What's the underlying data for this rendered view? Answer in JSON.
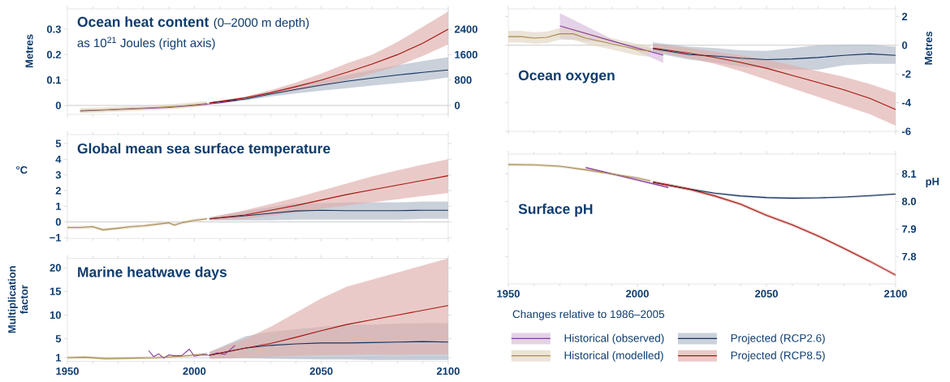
{
  "chart_data": [
    {
      "type": "line",
      "title": "Ocean heat content",
      "subtitle": "(0–2000 m depth)",
      "annotations": [
        "as 10$^{21}$ Joules (right axis)"
      ],
      "ylabel": "Metres",
      "xlim": [
        1950,
        2100
      ],
      "xticks": [
        1950,
        2000,
        2050,
        2100
      ],
      "ylim": [
        -0.035,
        0.38
      ],
      "yticks": [
        0,
        0.1,
        0.2,
        0.3
      ],
      "y2lim": [
        -280,
        3040
      ],
      "y2ticks": [
        0,
        800,
        1600,
        2400
      ],
      "tick_labels": "y",
      "ref_lines": [
        {
          "axis": "y",
          "value": 0,
          "color": "#a6a6a6"
        }
      ],
      "series": [
        {
          "color": "#8b3a9e",
          "x": [
            1955,
            1960,
            1970,
            1980,
            1990,
            2000,
            2010,
            2017
          ],
          "values": [
            -0.022,
            -0.02,
            -0.016,
            -0.012,
            -0.008,
            0.0,
            0.01,
            0.02
          ]
        },
        {
          "color": "#a88a4f",
          "x": [
            1955,
            1965,
            1975,
            1985,
            1995,
            2005
          ],
          "values": [
            -0.02,
            -0.017,
            -0.012,
            -0.008,
            -0.002,
            0.008
          ],
          "lower": [
            -0.03,
            -0.027,
            -0.022,
            -0.018,
            -0.012,
            -0.002
          ],
          "upper": [
            -0.01,
            -0.007,
            -0.002,
            0.002,
            0.008,
            0.018
          ]
        },
        {
          "color": "#14335e",
          "x": [
            2006,
            2020,
            2030,
            2040,
            2050,
            2060,
            2070,
            2080,
            2090,
            2100
          ],
          "values": [
            0.01,
            0.025,
            0.045,
            0.063,
            0.08,
            0.095,
            0.108,
            0.12,
            0.13,
            0.14
          ],
          "lower": [
            0.008,
            0.02,
            0.035,
            0.047,
            0.058,
            0.068,
            0.078,
            0.088,
            0.097,
            0.11
          ],
          "upper": [
            0.012,
            0.03,
            0.055,
            0.08,
            0.1,
            0.12,
            0.14,
            0.158,
            0.175,
            0.19
          ]
        },
        {
          "color": "#a3150f",
          "x": [
            2006,
            2020,
            2030,
            2040,
            2050,
            2060,
            2070,
            2080,
            2090,
            2100
          ],
          "values": [
            0.01,
            0.03,
            0.05,
            0.074,
            0.1,
            0.13,
            0.163,
            0.2,
            0.245,
            0.3
          ],
          "lower": [
            0.008,
            0.025,
            0.042,
            0.058,
            0.078,
            0.1,
            0.125,
            0.155,
            0.195,
            0.24
          ],
          "upper": [
            0.012,
            0.035,
            0.06,
            0.09,
            0.125,
            0.165,
            0.2,
            0.25,
            0.31,
            0.37
          ]
        }
      ]
    },
    {
      "type": "line",
      "title": "Ocean oxygen",
      "y2label": "Metres",
      "xlim": [
        1950,
        2100
      ],
      "xticks": [
        1950,
        2000,
        2050,
        2100
      ],
      "y2lim": [
        -6,
        2.53
      ],
      "y2ticks": [
        -6,
        -4,
        -2,
        0,
        2
      ],
      "tick_labels": "y",
      "ref_lines": [
        {
          "axis": "y2",
          "value": 0,
          "color": "#a6a6a6"
        }
      ],
      "series": [
        {
          "axis": "y2",
          "color": "#8b3a9e",
          "x": [
            1970,
            1993,
            2010
          ],
          "values": [
            1.34,
            0.15,
            -0.69
          ],
          "lower": [
            0.44,
            0.12,
            -1.23
          ],
          "upper": [
            2.24,
            0.18,
            -0.33
          ]
        },
        {
          "axis": "y2",
          "color": "#a88a4f",
          "x": [
            1950,
            1955,
            1960,
            1965,
            1970,
            1975,
            1980,
            1985,
            1990,
            1995,
            2000,
            2005
          ],
          "values": [
            0.6,
            0.6,
            0.5,
            0.55,
            0.8,
            0.8,
            0.5,
            0.3,
            0.1,
            -0.1,
            -0.3,
            -0.4
          ],
          "lower": [
            0.2,
            0.2,
            0.1,
            0.15,
            0.4,
            0.4,
            0.1,
            -0.1,
            -0.3,
            -0.5,
            -0.7,
            -0.8
          ],
          "upper": [
            1.0,
            1.0,
            0.9,
            0.95,
            1.2,
            1.2,
            0.9,
            0.7,
            0.5,
            0.3,
            0.1,
            0.0
          ]
        },
        {
          "axis": "y2",
          "color": "#14335e",
          "x": [
            2006,
            2020,
            2030,
            2040,
            2050,
            2060,
            2070,
            2080,
            2090,
            2100
          ],
          "values": [
            -0.23,
            -0.65,
            -0.75,
            -0.9,
            -1.0,
            -0.95,
            -0.85,
            -0.7,
            -0.6,
            -0.7
          ],
          "lower": [
            -0.5,
            -1.0,
            -1.2,
            -1.5,
            -1.6,
            -1.7,
            -1.7,
            -1.4,
            -1.3,
            -1.3
          ],
          "upper": [
            0.2,
            -0.1,
            -0.2,
            -0.35,
            -0.4,
            -0.2,
            0.0,
            0.05,
            0.05,
            -0.1
          ]
        },
        {
          "axis": "y2",
          "color": "#a3150f",
          "x": [
            2006,
            2020,
            2030,
            2040,
            2050,
            2060,
            2070,
            2080,
            2090,
            2100
          ],
          "values": [
            -0.2,
            -0.55,
            -0.85,
            -1.2,
            -1.6,
            -2.1,
            -2.6,
            -3.1,
            -3.7,
            -4.48
          ],
          "lower": [
            -0.4,
            -0.9,
            -1.3,
            -1.8,
            -2.4,
            -3.0,
            -3.6,
            -4.2,
            -4.8,
            -5.6
          ],
          "upper": [
            0.1,
            -0.2,
            -0.45,
            -0.7,
            -1.0,
            -1.4,
            -1.8,
            -2.2,
            -2.7,
            -3.3
          ]
        }
      ]
    },
    {
      "type": "line",
      "title": "Global mean sea surface temperature",
      "ylabel": "°C",
      "xlim": [
        1950,
        2100
      ],
      "xticks": [
        1950,
        2000,
        2050,
        2100
      ],
      "ylim": [
        -1.05,
        5.57
      ],
      "yticks": [
        {
          "value": -1,
          "label": "−1"
        },
        0,
        1,
        2,
        3,
        4,
        5
      ],
      "tick_labels": "y",
      "ref_lines": [
        {
          "axis": "y",
          "value": 0,
          "color": "#a6a6a6"
        }
      ],
      "series": [
        {
          "color": "#a88a4f",
          "x": [
            1950,
            1955,
            1960,
            1964,
            1970,
            1975,
            1980,
            1985,
            1990,
            1992,
            1995,
            2000,
            2005
          ],
          "values": [
            -0.35,
            -0.35,
            -0.3,
            -0.5,
            -0.4,
            -0.3,
            -0.25,
            -0.15,
            -0.05,
            -0.2,
            -0.05,
            0.1,
            0.2
          ],
          "lower": [
            -0.45,
            -0.45,
            -0.4,
            -0.6,
            -0.5,
            -0.4,
            -0.35,
            -0.25,
            -0.15,
            -0.3,
            -0.15,
            0.0,
            0.1
          ],
          "upper": [
            -0.25,
            -0.25,
            -0.2,
            -0.4,
            -0.3,
            -0.2,
            -0.15,
            -0.05,
            0.05,
            -0.1,
            0.05,
            0.2,
            0.3
          ]
        },
        {
          "color": "#14335e",
          "x": [
            2006,
            2020,
            2030,
            2040,
            2050,
            2060,
            2070,
            2080,
            2090,
            2100
          ],
          "values": [
            0.2,
            0.4,
            0.55,
            0.7,
            0.75,
            0.72,
            0.72,
            0.72,
            0.75,
            0.75
          ],
          "lower": [
            0.1,
            0.1,
            0.1,
            0.15,
            0.15,
            0.15,
            0.15,
            0.15,
            0.2,
            0.2
          ],
          "upper": [
            0.3,
            0.7,
            0.95,
            1.2,
            1.2,
            1.25,
            1.25,
            1.25,
            1.3,
            1.3
          ]
        },
        {
          "color": "#a3150f",
          "x": [
            2006,
            2020,
            2030,
            2040,
            2050,
            2060,
            2070,
            2080,
            2090,
            2100
          ],
          "values": [
            0.2,
            0.45,
            0.75,
            1.05,
            1.4,
            1.75,
            2.05,
            2.35,
            2.65,
            2.95
          ],
          "lower": [
            0.1,
            0.2,
            0.4,
            0.6,
            0.85,
            1.05,
            1.25,
            1.45,
            1.65,
            1.85
          ],
          "upper": [
            0.3,
            0.75,
            1.15,
            1.55,
            2.0,
            2.45,
            2.9,
            3.3,
            3.65,
            4.0
          ]
        }
      ]
    },
    {
      "type": "line",
      "title": "Surface pH",
      "y2label": "pH",
      "annotations": [
        "Changes relative to 1986–2005"
      ],
      "legend": "bottom",
      "xlim": [
        1950,
        2100
      ],
      "xticks": [
        1950,
        2000,
        2050,
        2100
      ],
      "y2lim": [
        7.701,
        8.172
      ],
      "y2ticks": [
        7.8,
        7.9,
        {
          "value": 8.0,
          "label": "8.0"
        },
        8.1
      ],
      "series": [
        {
          "axis": "y2",
          "name": "Historical (observed)",
          "color": "#8b3a9e",
          "x": [
            1980,
            2012
          ],
          "values": [
            8.123,
            8.051
          ],
          "lower": [
            8.119,
            8.047
          ],
          "upper": [
            8.127,
            8.055
          ]
        },
        {
          "axis": "y2",
          "name": "Historical (modelled)",
          "color": "#a88a4f",
          "x": [
            1950,
            1960,
            1970,
            1980,
            1990,
            2000,
            2005
          ],
          "values": [
            8.134,
            8.133,
            8.128,
            8.115,
            8.1,
            8.085,
            8.075
          ],
          "lower": [
            8.129,
            8.128,
            8.123,
            8.11,
            8.095,
            8.08,
            8.07
          ],
          "upper": [
            8.139,
            8.138,
            8.133,
            8.12,
            8.105,
            8.09,
            8.08
          ]
        },
        {
          "axis": "y2",
          "name": "Projected (RCP2.6)",
          "color": "#14335e",
          "x": [
            2006,
            2020,
            2030,
            2040,
            2050,
            2060,
            2070,
            2080,
            2090,
            2100
          ],
          "values": [
            8.07,
            8.045,
            8.03,
            8.02,
            8.014,
            8.012,
            8.013,
            8.016,
            8.021,
            8.027
          ],
          "lower": [
            8.066,
            8.041,
            8.026,
            8.016,
            8.01,
            8.008,
            8.009,
            8.012,
            8.017,
            8.023
          ],
          "upper": [
            8.074,
            8.049,
            8.034,
            8.024,
            8.018,
            8.016,
            8.017,
            8.02,
            8.025,
            8.031
          ]
        },
        {
          "axis": "y2",
          "name": "Projected (RCP8.5)",
          "color": "#a3150f",
          "x": [
            2006,
            2020,
            2030,
            2040,
            2050,
            2060,
            2070,
            2080,
            2090,
            2100
          ],
          "values": [
            8.07,
            8.045,
            8.02,
            7.99,
            7.95,
            7.915,
            7.875,
            7.83,
            7.783,
            7.733
          ],
          "lower": [
            8.064,
            8.039,
            8.014,
            7.984,
            7.944,
            7.909,
            7.869,
            7.824,
            7.777,
            7.727
          ],
          "upper": [
            8.076,
            8.051,
            8.026,
            7.996,
            7.956,
            7.921,
            7.881,
            7.836,
            7.789,
            7.739
          ]
        }
      ]
    },
    {
      "type": "line",
      "title": "Marine heatwave days",
      "ylabel": "Multiplication factor",
      "xlim": [
        1950,
        2100
      ],
      "xticks": [
        1950,
        2000,
        2050,
        2100
      ],
      "ylim": [
        0.23,
        22
      ],
      "yticks": [
        1,
        5,
        10,
        15,
        20
      ],
      "ref_lines": [
        {
          "axis": "y",
          "value": 1,
          "color": "#a6a6a6"
        }
      ],
      "series": [
        {
          "color": "#8b3a9e",
          "x": [
            1982,
            1984,
            1986,
            1988,
            1990,
            1992,
            1995,
            1998,
            2000,
            2003,
            2006,
            2009,
            2012,
            2014,
            2016
          ],
          "values": [
            2.5,
            1.2,
            1.8,
            0.9,
            1.6,
            1.4,
            1.4,
            2.8,
            1.3,
            1.6,
            1.5,
            2.0,
            1.7,
            2.6,
            3.6
          ]
        },
        {
          "color": "#a88a4f",
          "x": [
            1950,
            1957,
            1965,
            1975,
            1985,
            1995,
            2005
          ],
          "values": [
            1.0,
            1.1,
            0.8,
            0.9,
            1.0,
            1.3,
            1.8
          ],
          "lower": [
            0.7,
            0.8,
            0.5,
            0.6,
            0.7,
            1.0,
            1.5
          ],
          "upper": [
            1.3,
            1.4,
            1.1,
            1.2,
            1.3,
            1.6,
            2.1
          ]
        },
        {
          "color": "#14335e",
          "x": [
            2006,
            2020,
            2030,
            2040,
            2050,
            2060,
            2070,
            2080,
            2090,
            2100
          ],
          "values": [
            1.5,
            3.0,
            3.6,
            3.9,
            4.1,
            4.1,
            4.2,
            4.3,
            4.4,
            4.3
          ],
          "lower": [
            0.8,
            0.9,
            0.8,
            0.7,
            0.6,
            0.6,
            0.5,
            0.5,
            0.5,
            0.5
          ],
          "upper": [
            2.2,
            5.5,
            6.5,
            7.0,
            7.5,
            8.0,
            8.0,
            8.2,
            8.3,
            8.3
          ]
        },
        {
          "color": "#a3150f",
          "x": [
            2006,
            2020,
            2030,
            2040,
            2050,
            2060,
            2070,
            2080,
            2090,
            2100
          ],
          "values": [
            1.5,
            3.0,
            4.0,
            5.3,
            6.7,
            8.0,
            9.0,
            10.0,
            11.0,
            12.0
          ],
          "lower": [
            0.8,
            1.0,
            1.2,
            1.4,
            1.5,
            1.6,
            1.7,
            1.6,
            1.7,
            1.7
          ],
          "upper": [
            2.2,
            5.0,
            7.5,
            10.5,
            13.5,
            16.0,
            17.5,
            19.0,
            20.5,
            22.0
          ]
        }
      ]
    }
  ]
}
